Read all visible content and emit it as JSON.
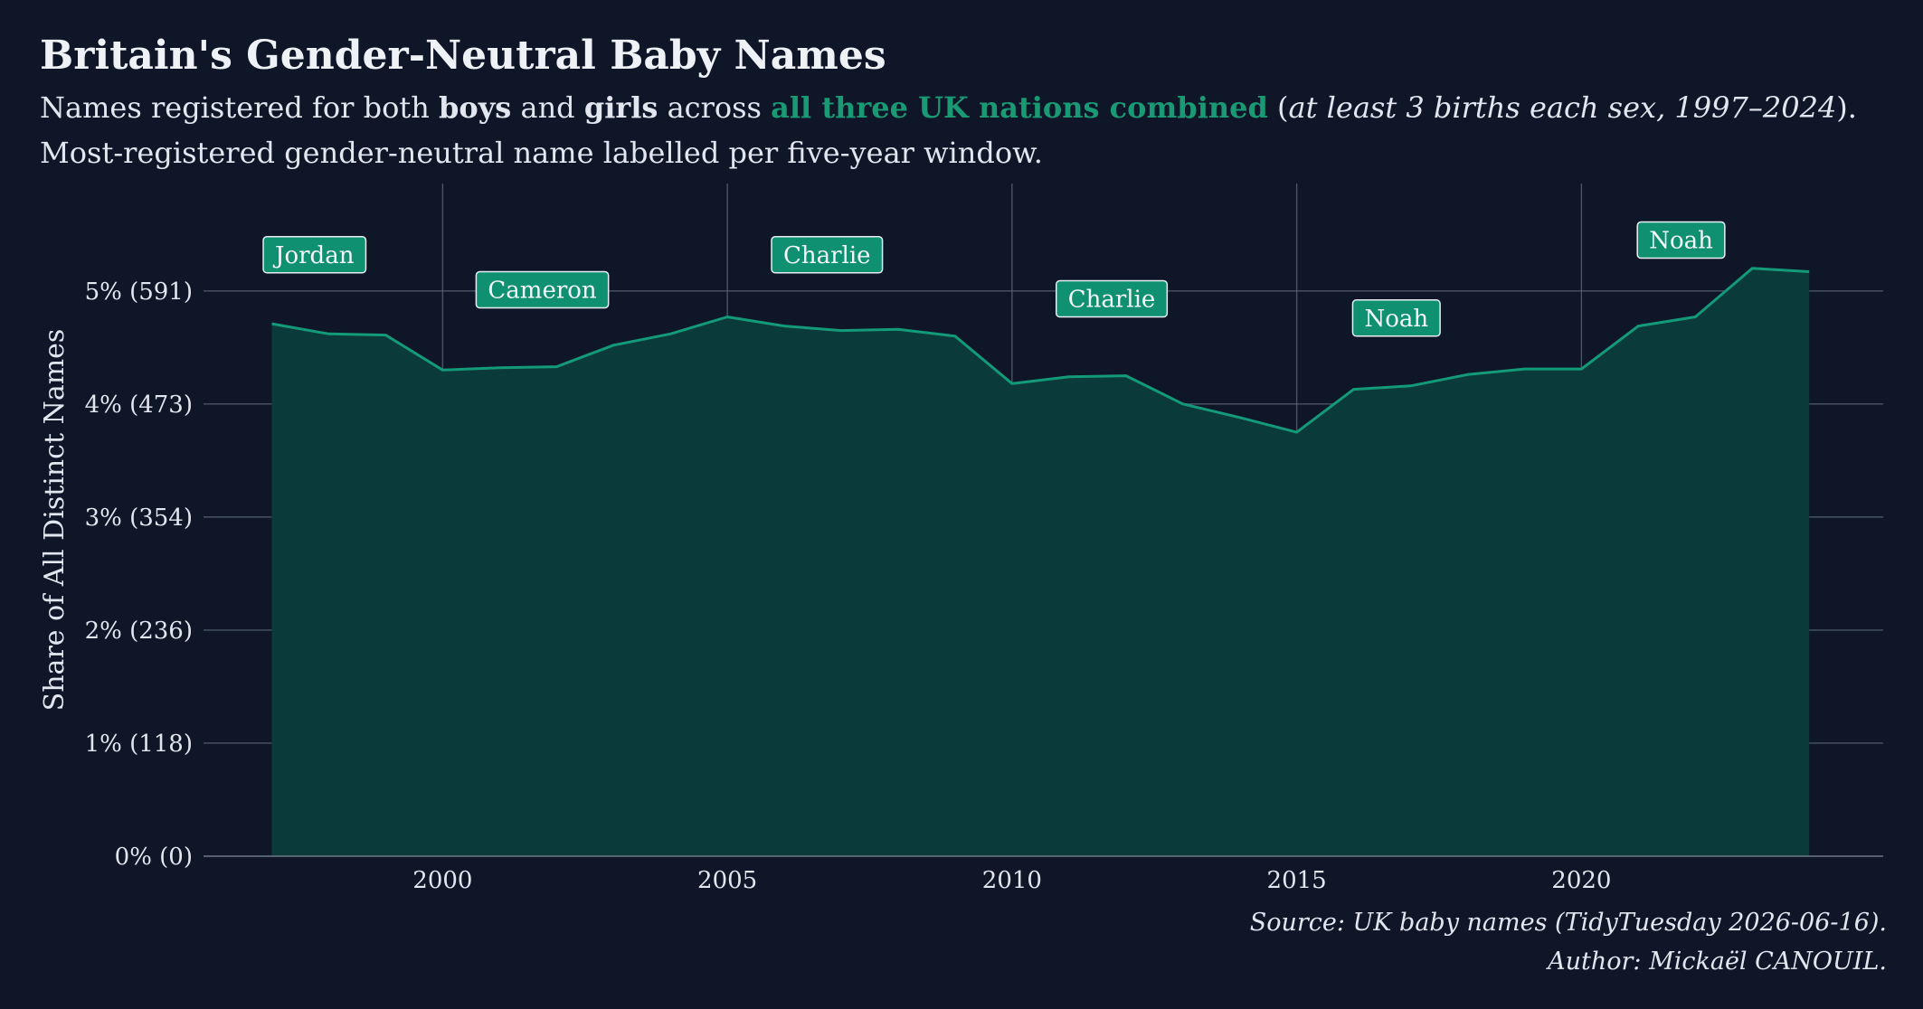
{
  "title": "Britain's Gender-Neutral Baby Names",
  "subtitle": {
    "line1": {
      "t1": "Names registered for both ",
      "boys": "boys",
      "t2": " and ",
      "girls": "girls",
      "t3": " across ",
      "accent": "all three UK nations combined",
      "t4": " (",
      "italic": "at least 3 births each sex, 1997–2024",
      "t5": ")."
    },
    "line2": "Most-registered gender-neutral name labelled per five-year window."
  },
  "caption": {
    "line1": "Source: UK baby names (TidyTuesday 2026-06-16).",
    "line2": "Author: Mickaël CANOUIL."
  },
  "colors": {
    "background": "#0e1628",
    "accent": "#1a9a74",
    "area": "#0a3a3a",
    "line": "#139a78",
    "label_box": "#0f9070"
  },
  "chart_data": {
    "type": "area",
    "ylabel": "Share of All Distinct Names",
    "xlim": [
      1995.8,
      2025.3
    ],
    "ylim": [
      0,
      5.95
    ],
    "x_ticks": [
      {
        "value": 2000,
        "label": "2000"
      },
      {
        "value": 2005,
        "label": "2005"
      },
      {
        "value": 2010,
        "label": "2010"
      },
      {
        "value": 2015,
        "label": "2015"
      },
      {
        "value": 2020,
        "label": "2020"
      }
    ],
    "y_ticks": [
      {
        "value": 0,
        "label": "0% (0)"
      },
      {
        "value": 1,
        "label": "1% (118)"
      },
      {
        "value": 2,
        "label": "2% (236)"
      },
      {
        "value": 3,
        "label": "3% (354)"
      },
      {
        "value": 4,
        "label": "4% (473)"
      },
      {
        "value": 5,
        "label": "5% (591)"
      }
    ],
    "grid": true,
    "series": [
      {
        "x": [
          1997,
          1998,
          1999,
          2000,
          2001,
          2002,
          2003,
          2004,
          2005,
          2006,
          2007,
          2008,
          2009,
          2010,
          2011,
          2012,
          2013,
          2014,
          2015,
          2016,
          2017,
          2018,
          2019,
          2020,
          2021,
          2022,
          2023,
          2024
        ],
        "values": [
          4.71,
          4.62,
          4.61,
          4.3,
          4.32,
          4.33,
          4.52,
          4.62,
          4.77,
          4.69,
          4.65,
          4.66,
          4.6,
          4.18,
          4.24,
          4.25,
          4.0,
          3.88,
          3.75,
          4.13,
          4.16,
          4.26,
          4.31,
          4.31,
          4.69,
          4.77,
          5.2,
          5.17
        ]
      }
    ],
    "annotations": [
      {
        "x": 1997.75,
        "y": 5.32,
        "label": "Jordan"
      },
      {
        "x": 2001.75,
        "y": 5.01,
        "label": "Cameron"
      },
      {
        "x": 2006.75,
        "y": 5.32,
        "label": "Charlie"
      },
      {
        "x": 2011.75,
        "y": 4.93,
        "label": "Charlie"
      },
      {
        "x": 2016.75,
        "y": 4.76,
        "label": "Noah"
      },
      {
        "x": 2021.75,
        "y": 5.45,
        "label": "Noah"
      }
    ]
  }
}
